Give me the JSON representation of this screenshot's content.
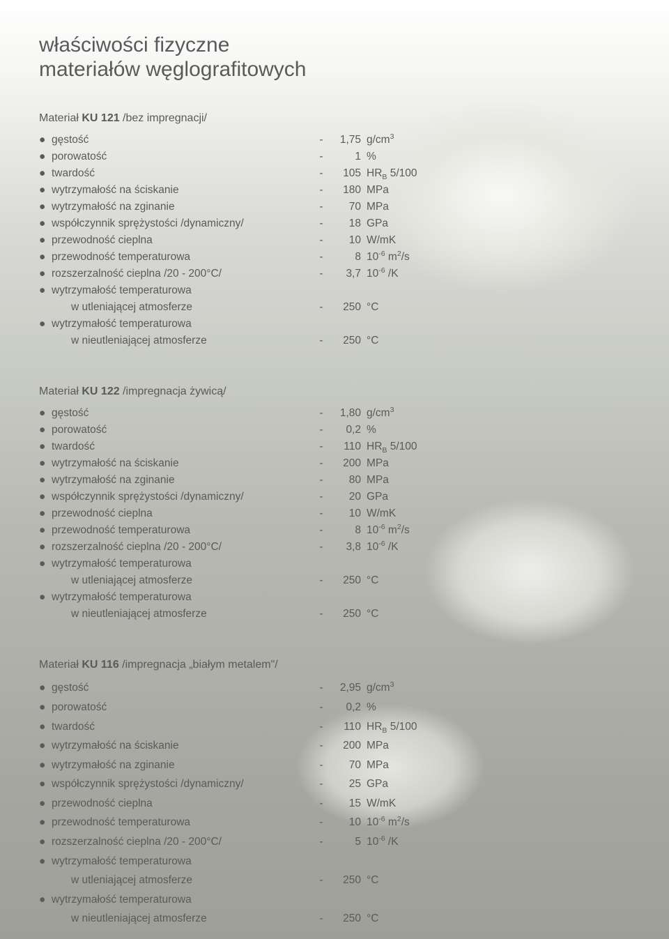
{
  "title_line1": "właściwości fizyczne",
  "title_line2": "materiałów węglografitowych",
  "materials": [
    {
      "heading_pre": "Materiał ",
      "heading_bold": "KU 121",
      "heading_post": " /bez impregnacji/",
      "rows": [
        {
          "b": true,
          "label": "gęstość",
          "val": "1,75",
          "unit": "g/cm<sup>3</sup>"
        },
        {
          "b": true,
          "label": "porowatość",
          "val": "1",
          "unit": "%"
        },
        {
          "b": true,
          "label": "twardość",
          "val": "105",
          "unit": "HR<sub>B</sub> 5/100"
        },
        {
          "b": true,
          "label": "wytrzymałość na ściskanie",
          "val": "180",
          "unit": "MPa"
        },
        {
          "b": true,
          "label": "wytrzymałość na zginanie",
          "val": "70",
          "unit": "MPa"
        },
        {
          "b": true,
          "label": "współczynnik sprężystości /dynamiczny/",
          "val": "18",
          "unit": "GPa"
        },
        {
          "b": true,
          "label": "przewodność cieplna",
          "val": "10",
          "unit": "W/mK"
        },
        {
          "b": true,
          "label": "przewodność temperaturowa",
          "val": "8",
          "unit": "10<sup>-6</sup> m<sup>2</sup>/s"
        },
        {
          "b": true,
          "label": "rozszerzalność cieplna /20 - 200°C/",
          "val": "3,7",
          "unit": "10<sup>-6</sup> /K"
        },
        {
          "b": true,
          "label": "wytrzymałość temperaturowa",
          "noval": true
        },
        {
          "b": false,
          "label": "w utleniającej atmosferze",
          "val": "250",
          "unit": "°C"
        },
        {
          "b": true,
          "label": "wytrzymałość temperaturowa",
          "noval": true
        },
        {
          "b": false,
          "label": "w nieutleniającej atmosferze",
          "val": "250",
          "unit": "°C"
        }
      ]
    },
    {
      "heading_pre": "Materiał ",
      "heading_bold": "KU 122",
      "heading_post": " /impregnacja żywicą/",
      "rows": [
        {
          "b": true,
          "label": "gęstość",
          "val": "1,80",
          "unit": "g/cm<sup>3</sup>"
        },
        {
          "b": true,
          "label": "porowatość",
          "val": "0,2",
          "unit": "%"
        },
        {
          "b": true,
          "label": "twardość",
          "val": "110",
          "unit": "HR<sub>B</sub> 5/100"
        },
        {
          "b": true,
          "label": "wytrzymałość na ściskanie",
          "val": "200",
          "unit": "MPa"
        },
        {
          "b": true,
          "label": "wytrzymałość na zginanie",
          "val": "80",
          "unit": "MPa"
        },
        {
          "b": true,
          "label": "współczynnik sprężystości /dynamiczny/",
          "val": "20",
          "unit": "GPa"
        },
        {
          "b": true,
          "label": "przewodność cieplna",
          "val": "10",
          "unit": "W/mK"
        },
        {
          "b": true,
          "label": "przewodność temperaturowa",
          "val": "8",
          "unit": "10<sup>-6</sup> m<sup>2</sup>/s"
        },
        {
          "b": true,
          "label": "rozszerzalność cieplna /20 - 200°C/",
          "val": "3,8",
          "unit": "10<sup>-6</sup> /K"
        },
        {
          "b": true,
          "label": "wytrzymałość temperaturowa",
          "noval": true
        },
        {
          "b": false,
          "label": "w utleniającej atmosferze",
          "val": "250",
          "unit": "°C"
        },
        {
          "b": true,
          "label": "wytrzymałość temperaturowa",
          "noval": true
        },
        {
          "b": false,
          "label": "w nieutleniającej atmosferze",
          "val": "250",
          "unit": "°C"
        }
      ]
    },
    {
      "heading_pre": "Materiał ",
      "heading_bold": "KU 116",
      "heading_post": " /impregnacja „białym metalem\"/",
      "spaced": true,
      "rows": [
        {
          "b": true,
          "label": "gęstość",
          "val": "2,95",
          "unit": "g/cm<sup>3</sup>"
        },
        {
          "b": true,
          "label": "porowatość",
          "val": "0,2",
          "unit": "%"
        },
        {
          "b": true,
          "label": "twardość",
          "val": "110",
          "unit": "HR<sub>B</sub> 5/100"
        },
        {
          "b": true,
          "label": "wytrzymałość na ściskanie",
          "val": "200",
          "unit": "MPa"
        },
        {
          "b": true,
          "label": "wytrzymałość na zginanie",
          "val": "70",
          "unit": "MPa"
        },
        {
          "b": true,
          "label": "współczynnik sprężystości /dynamiczny/",
          "val": "25",
          "unit": "GPa"
        },
        {
          "b": true,
          "label": "przewodność cieplna",
          "val": "15",
          "unit": "W/mK"
        },
        {
          "b": true,
          "label": "przewodność temperaturowa",
          "val": "10",
          "unit": "10<sup>-6</sup> m<sup>2</sup>/s"
        },
        {
          "b": true,
          "label": "rozszerzalność cieplna /20 - 200°C/",
          "val": "5",
          "unit": "10<sup>-6</sup> /K"
        },
        {
          "b": true,
          "label": "wytrzymałość temperaturowa",
          "noval": true
        },
        {
          "b": false,
          "label": "w utleniającej atmosferze",
          "val": "250",
          "unit": "°C"
        },
        {
          "b": true,
          "label": "wytrzymałość temperaturowa",
          "noval": true
        },
        {
          "b": false,
          "label": "w nieutleniającej atmosferze",
          "val": "250",
          "unit": "°C"
        }
      ]
    }
  ]
}
